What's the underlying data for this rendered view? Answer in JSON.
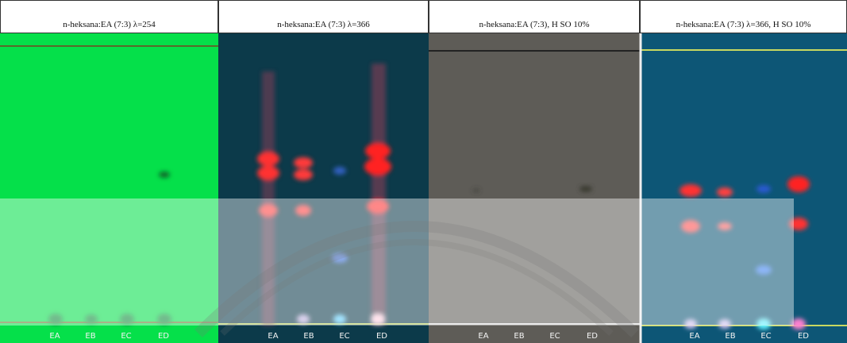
{
  "panels": [
    {
      "title": "n-heksana:EA (7:3) λ=254",
      "lanes": [
        "EA",
        "EB",
        "EC",
        "ED"
      ]
    },
    {
      "title": "n-heksana:EA (7:3) λ=366",
      "lanes": [
        "EA",
        "EB",
        "EC",
        "ED"
      ]
    },
    {
      "title": "n-heksana:EA (7:3), H SO  10%",
      "lanes": [
        "EA",
        "EB",
        "EC",
        "ED"
      ]
    },
    {
      "title": "n-heksana:EA (7:3) λ=366, H SO  10%",
      "lanes": [
        "EA",
        "EB",
        "EC",
        "ED"
      ]
    }
  ]
}
